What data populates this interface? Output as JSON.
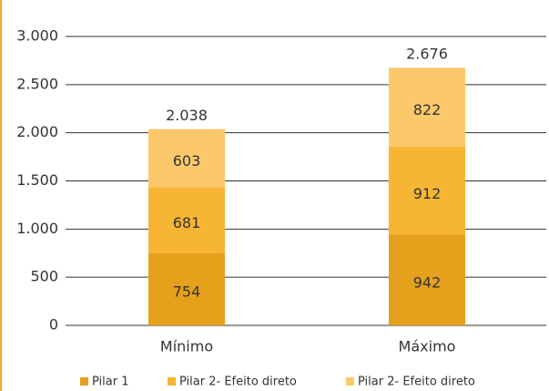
{
  "chart_data": {
    "type": "stacked_bar",
    "categories": [
      "Mínimo",
      "Máximo"
    ],
    "series": [
      {
        "name": "Pilar 1",
        "color": "#e5a11b",
        "values": [
          754,
          942
        ]
      },
      {
        "name": "Pilar 2- Efeito direto",
        "color": "#f6b532",
        "values": [
          681,
          912
        ]
      },
      {
        "name": "Pilar 2- Efeito direto",
        "color": "#fbc96c",
        "values": [
          603,
          822
        ]
      }
    ],
    "totals": {
      "values": [
        2038,
        2676
      ],
      "value_labels": [
        "2.038",
        "2.676"
      ]
    },
    "ylim": [
      0,
      3000
    ],
    "yticks": [
      0,
      500,
      {
        "value": 1000,
        "label": "1.000"
      },
      {
        "value": 1500,
        "label": "1.500"
      },
      {
        "value": 2000,
        "label": "2.000"
      },
      {
        "value": 2500,
        "label": "2.500"
      },
      {
        "value": 3000,
        "label": "3.000"
      }
    ],
    "grid": true,
    "legend": "bottom"
  }
}
